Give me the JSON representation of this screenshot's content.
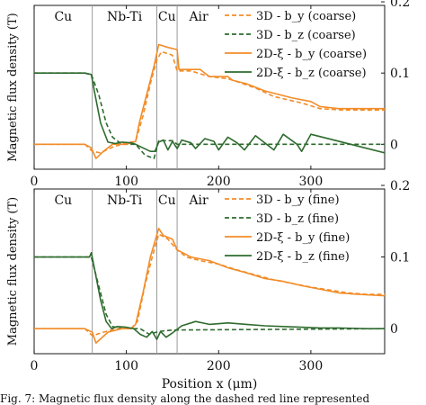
{
  "chart_data": [
    {
      "type": "line",
      "ylabel": "Magnetic flux density (T)",
      "xlabel": "",
      "xlim": [
        0,
        380
      ],
      "ylim_left": [
        -0.035,
        0.195
      ],
      "ylim_right": [
        0,
        0.2
      ],
      "x_ticks": [
        0,
        100,
        200,
        300
      ],
      "y_ticks_right": [
        0,
        0.1,
        0.2
      ],
      "regions": [
        {
          "label": "Cu",
          "start": 0,
          "end": 63
        },
        {
          "label": "Nb-Ti",
          "start": 63,
          "end": 133
        },
        {
          "label": "Cu",
          "start": 133,
          "end": 155
        },
        {
          "label": "Air",
          "start": 155,
          "end": 380
        }
      ],
      "region_boundaries": [
        63,
        133,
        155
      ],
      "legend_position": "top-right",
      "series": [
        {
          "name": "3D - b_y (coarse)",
          "color": "#f28c28",
          "dash": true,
          "points": [
            [
              0,
              0
            ],
            [
              55,
              0
            ],
            [
              63,
              -0.01
            ],
            [
              72,
              -0.012
            ],
            [
              85,
              -0.004
            ],
            [
              100,
              0.002
            ],
            [
              110,
              0.004
            ],
            [
              118,
              0.04
            ],
            [
              127,
              0.09
            ],
            [
              133,
              0.118
            ],
            [
              138,
              0.13
            ],
            [
              143,
              0.128
            ],
            [
              150,
              0.125
            ],
            [
              155,
              0.103
            ],
            [
              170,
              0.103
            ],
            [
              190,
              0.095
            ],
            [
              210,
              0.092
            ],
            [
              220,
              0.088
            ],
            [
              240,
              0.079
            ],
            [
              260,
              0.067
            ],
            [
              290,
              0.058
            ],
            [
              310,
              0.05
            ],
            [
              335,
              0.048
            ],
            [
              380,
              0.048
            ]
          ]
        },
        {
          "name": "3D - b_z (coarse)",
          "color": "#2e6b2e",
          "dash": true,
          "points": [
            [
              0,
              0.1
            ],
            [
              55,
              0.1
            ],
            [
              62,
              0.098
            ],
            [
              70,
              0.07
            ],
            [
              78,
              0.03
            ],
            [
              85,
              0.01
            ],
            [
              95,
              0
            ],
            [
              110,
              0
            ],
            [
              120,
              -0.015
            ],
            [
              130,
              -0.02
            ],
            [
              135,
              0.005
            ],
            [
              150,
              0.005
            ],
            [
              155,
              0
            ],
            [
              380,
              0
            ]
          ]
        },
        {
          "name": "2D-ξ - b_y (coarse)",
          "color": "#f28c28",
          "dash": false,
          "points": [
            [
              0,
              0
            ],
            [
              55,
              0
            ],
            [
              62,
              -0.005
            ],
            [
              67,
              -0.02
            ],
            [
              75,
              -0.01
            ],
            [
              85,
              0
            ],
            [
              100,
              0
            ],
            [
              110,
              0.004
            ],
            [
              114,
              0.03
            ],
            [
              122,
              0.07
            ],
            [
              130,
              0.11
            ],
            [
              135,
              0.14
            ],
            [
              145,
              0.136
            ],
            [
              155,
              0.133
            ],
            [
              157,
              0.105
            ],
            [
              180,
              0.105
            ],
            [
              190,
              0.095
            ],
            [
              210,
              0.095
            ],
            [
              215,
              0.09
            ],
            [
              230,
              0.085
            ],
            [
              250,
              0.075
            ],
            [
              280,
              0.065
            ],
            [
              300,
              0.06
            ],
            [
              310,
              0.053
            ],
            [
              330,
              0.05
            ],
            [
              380,
              0.05
            ]
          ]
        },
        {
          "name": "2D-ξ - b_z (coarse)",
          "color": "#2e6b2e",
          "dash": false,
          "points": [
            [
              0,
              0.1
            ],
            [
              55,
              0.1
            ],
            [
              62,
              0.098
            ],
            [
              66,
              0.07
            ],
            [
              72,
              0.03
            ],
            [
              80,
              0.003
            ],
            [
              88,
              0.001
            ],
            [
              95,
              0.003
            ],
            [
              105,
              0.002
            ],
            [
              110,
              0
            ],
            [
              118,
              -0.005
            ],
            [
              126,
              -0.01
            ],
            [
              131,
              -0.01
            ],
            [
              135,
              0.003
            ],
            [
              140,
              0.006
            ],
            [
              145,
              -0.008
            ],
            [
              150,
              0.004
            ],
            [
              155,
              -0.006
            ],
            [
              160,
              0.006
            ],
            [
              170,
              0.002
            ],
            [
              175,
              -0.006
            ],
            [
              185,
              0.008
            ],
            [
              195,
              0.004
            ],
            [
              200,
              -0.008
            ],
            [
              210,
              0.01
            ],
            [
              220,
              0.002
            ],
            [
              228,
              -0.008
            ],
            [
              240,
              0.012
            ],
            [
              250,
              0.002
            ],
            [
              260,
              -0.008
            ],
            [
              270,
              0.014
            ],
            [
              285,
              0
            ],
            [
              290,
              -0.01
            ],
            [
              300,
              0.014
            ],
            [
              380,
              -0.012
            ]
          ]
        }
      ]
    },
    {
      "type": "line",
      "ylabel": "Magnetic flux density (T)",
      "xlabel": "Position x (μm)",
      "xlim": [
        0,
        380
      ],
      "ylim_left": [
        -0.035,
        0.195
      ],
      "ylim_right": [
        0,
        0.2
      ],
      "x_ticks": [
        0,
        100,
        200,
        300
      ],
      "y_ticks_right": [
        0,
        0.1,
        0.2
      ],
      "regions": [
        {
          "label": "Cu",
          "start": 0,
          "end": 63
        },
        {
          "label": "Nb-Ti",
          "start": 63,
          "end": 133
        },
        {
          "label": "Cu",
          "start": 133,
          "end": 155
        },
        {
          "label": "Air",
          "start": 155,
          "end": 380
        }
      ],
      "region_boundaries": [
        63,
        133,
        155
      ],
      "legend_position": "top-right",
      "series": [
        {
          "name": "3D - b_y (fine)",
          "color": "#f28c28",
          "dash": true,
          "points": [
            [
              0,
              0
            ],
            [
              55,
              0
            ],
            [
              63,
              -0.01
            ],
            [
              75,
              -0.005
            ],
            [
              90,
              0
            ],
            [
              105,
              0
            ],
            [
              112,
              0.01
            ],
            [
              120,
              0.06
            ],
            [
              128,
              0.1
            ],
            [
              135,
              0.132
            ],
            [
              145,
              0.125
            ],
            [
              155,
              0.11
            ],
            [
              165,
              0.1
            ],
            [
              180,
              0.095
            ],
            [
              200,
              0.09
            ],
            [
              220,
              0.082
            ],
            [
              240,
              0.075
            ],
            [
              260,
              0.068
            ],
            [
              280,
              0.063
            ],
            [
              300,
              0.058
            ],
            [
              320,
              0.054
            ],
            [
              340,
              0.05
            ],
            [
              360,
              0.048
            ],
            [
              380,
              0.048
            ]
          ]
        },
        {
          "name": "3D - b_z (fine)",
          "color": "#2e6b2e",
          "dash": true,
          "points": [
            [
              0,
              0.1
            ],
            [
              55,
              0.1
            ],
            [
              62,
              0.1
            ],
            [
              70,
              0.06
            ],
            [
              78,
              0.02
            ],
            [
              85,
              0.003
            ],
            [
              95,
              0
            ],
            [
              115,
              0
            ],
            [
              125,
              -0.008
            ],
            [
              135,
              -0.004
            ],
            [
              150,
              -0.002
            ],
            [
              380,
              0
            ]
          ]
        },
        {
          "name": "2D-ξ - b_y (fine)",
          "color": "#f28c28",
          "dash": false,
          "points": [
            [
              0,
              0
            ],
            [
              55,
              0
            ],
            [
              63,
              -0.005
            ],
            [
              67,
              -0.02
            ],
            [
              80,
              -0.005
            ],
            [
              95,
              0
            ],
            [
              105,
              0
            ],
            [
              110,
              0.006
            ],
            [
              118,
              0.05
            ],
            [
              126,
              0.1
            ],
            [
              135,
              0.14
            ],
            [
              140,
              0.13
            ],
            [
              150,
              0.125
            ],
            [
              155,
              0.11
            ],
            [
              170,
              0.1
            ],
            [
              190,
              0.095
            ],
            [
              210,
              0.085
            ],
            [
              230,
              0.078
            ],
            [
              250,
              0.07
            ],
            [
              270,
              0.066
            ],
            [
              290,
              0.06
            ],
            [
              310,
              0.055
            ],
            [
              330,
              0.05
            ],
            [
              350,
              0.048
            ],
            [
              380,
              0.046
            ]
          ]
        },
        {
          "name": "2D-ξ - b_z (fine)",
          "color": "#2e6b2e",
          "dash": false,
          "points": [
            [
              0,
              0.1
            ],
            [
              55,
              0.1
            ],
            [
              60,
              0.1
            ],
            [
              62,
              0.106
            ],
            [
              66,
              0.08
            ],
            [
              72,
              0.04
            ],
            [
              78,
              0.01
            ],
            [
              84,
              0
            ],
            [
              90,
              0.003
            ],
            [
              100,
              0.002
            ],
            [
              108,
              0
            ],
            [
              115,
              -0.008
            ],
            [
              122,
              -0.012
            ],
            [
              128,
              -0.004
            ],
            [
              133,
              -0.015
            ],
            [
              137,
              -0.004
            ],
            [
              143,
              -0.012
            ],
            [
              150,
              -0.006
            ],
            [
              160,
              0.004
            ],
            [
              175,
              0.01
            ],
            [
              190,
              0.006
            ],
            [
              210,
              0.008
            ],
            [
              230,
              0.006
            ],
            [
              250,
              0.004
            ],
            [
              270,
              0.003
            ],
            [
              290,
              0.002
            ],
            [
              310,
              0.001
            ],
            [
              330,
              0.001
            ],
            [
              360,
              0
            ],
            [
              380,
              0
            ]
          ]
        }
      ]
    }
  ],
  "caption": "Fig. 7: Magnetic flux density along the dashed red line represented"
}
